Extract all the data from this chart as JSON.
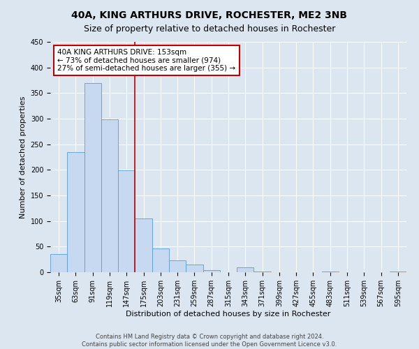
{
  "title": "40A, KING ARTHURS DRIVE, ROCHESTER, ME2 3NB",
  "subtitle": "Size of property relative to detached houses in Rochester",
  "xlabel": "Distribution of detached houses by size in Rochester",
  "ylabel": "Number of detached properties",
  "bar_labels": [
    "35sqm",
    "63sqm",
    "91sqm",
    "119sqm",
    "147sqm",
    "175sqm",
    "203sqm",
    "231sqm",
    "259sqm",
    "287sqm",
    "315sqm",
    "343sqm",
    "371sqm",
    "399sqm",
    "427sqm",
    "455sqm",
    "483sqm",
    "511sqm",
    "539sqm",
    "567sqm",
    "595sqm"
  ],
  "bar_values": [
    35,
    234,
    370,
    298,
    199,
    105,
    46,
    23,
    15,
    4,
    0,
    10,
    1,
    0,
    0,
    0,
    1,
    0,
    0,
    0,
    1
  ],
  "bar_color": "#c6d9f0",
  "bar_edge_color": "#5b9bd5",
  "vline_x": 4.5,
  "vline_color": "#c00000",
  "annotation_text": "40A KING ARTHURS DRIVE: 153sqm\n← 73% of detached houses are smaller (974)\n27% of semi-detached houses are larger (355) →",
  "annotation_box_color": "#c00000",
  "annotation_text_color": "#000000",
  "ylim": [
    0,
    450
  ],
  "yticks": [
    0,
    50,
    100,
    150,
    200,
    250,
    300,
    350,
    400,
    450
  ],
  "bg_color": "#dce6f1",
  "plot_bg_color": "#dce6f1",
  "footer_line1": "Contains HM Land Registry data © Crown copyright and database right 2024.",
  "footer_line2": "Contains public sector information licensed under the Open Government Licence v3.0.",
  "title_fontsize": 10,
  "subtitle_fontsize": 9,
  "axis_label_fontsize": 8,
  "tick_fontsize": 7,
  "annotation_fontsize": 7.5,
  "footer_fontsize": 6
}
